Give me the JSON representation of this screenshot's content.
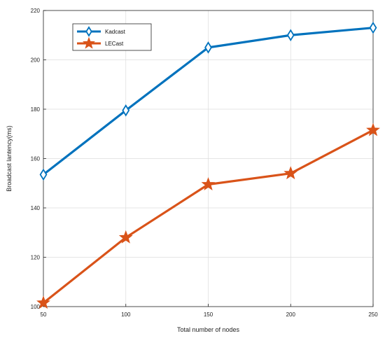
{
  "chart_data": {
    "type": "line",
    "title": "",
    "xlabel": "Total number of nodes",
    "ylabel": "Broadcast lantency(ms)",
    "x": [
      50,
      100,
      150,
      200,
      250
    ],
    "xlim": [
      50,
      250
    ],
    "ylim": [
      100,
      220
    ],
    "xticks": [
      50,
      100,
      150,
      200,
      250
    ],
    "yticks": [
      100,
      120,
      140,
      160,
      180,
      200,
      220
    ],
    "grid": true,
    "legend_position": "top-left",
    "series": [
      {
        "name": "Kadcast",
        "values": [
          153.5,
          179.5,
          205,
          210,
          213
        ],
        "color": "#0072BD",
        "marker": "diamond"
      },
      {
        "name": "LECast",
        "values": [
          101.5,
          128,
          149.5,
          154,
          171.5
        ],
        "color": "#D95319",
        "marker": "star"
      }
    ]
  }
}
